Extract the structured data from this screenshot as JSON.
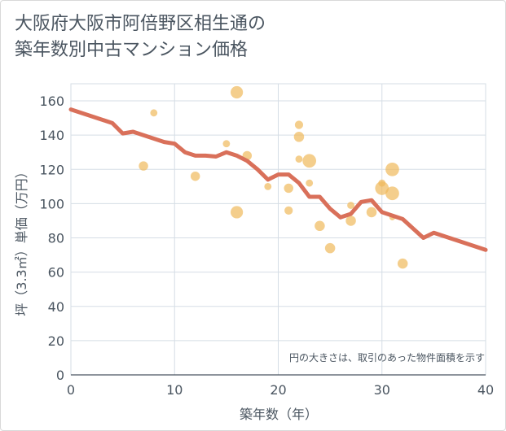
{
  "title_lines": [
    "大阪府大阪市阿倍野区相生通の",
    "築年数別中古マンション価格"
  ],
  "chart_data": {
    "type": "scatter",
    "xlabel": "築年数（年）",
    "ylabel": "坪（3.3㎡）単価（万円）",
    "xlim": [
      0,
      40
    ],
    "ylim": [
      0,
      170
    ],
    "x_ticks": [
      0,
      10,
      20,
      30,
      40
    ],
    "y_ticks": [
      0,
      20,
      40,
      60,
      80,
      100,
      120,
      140,
      160
    ],
    "grid": true,
    "annotation": "円の大きさは、取引のあった物件面積を示す",
    "colors": {
      "bubble": "#f0b95b",
      "line": "#d9705a",
      "axis_text": "#4a5560",
      "grid": "#d5dde5"
    },
    "scatter": [
      {
        "x": 7,
        "y": 122,
        "size": 2
      },
      {
        "x": 8,
        "y": 153,
        "size": 1
      },
      {
        "x": 12,
        "y": 116,
        "size": 2
      },
      {
        "x": 15,
        "y": 135,
        "size": 1
      },
      {
        "x": 16,
        "y": 165,
        "size": 4
      },
      {
        "x": 16,
        "y": 95,
        "size": 4
      },
      {
        "x": 17,
        "y": 128,
        "size": 2
      },
      {
        "x": 19,
        "y": 110,
        "size": 1
      },
      {
        "x": 21,
        "y": 109,
        "size": 2
      },
      {
        "x": 21,
        "y": 96,
        "size": 1.5
      },
      {
        "x": 22,
        "y": 146,
        "size": 1.5
      },
      {
        "x": 22,
        "y": 139,
        "size": 2.5
      },
      {
        "x": 22,
        "y": 126,
        "size": 1
      },
      {
        "x": 23,
        "y": 125,
        "size": 5
      },
      {
        "x": 23,
        "y": 112,
        "size": 1
      },
      {
        "x": 24,
        "y": 87,
        "size": 2.5
      },
      {
        "x": 25,
        "y": 74,
        "size": 2.5
      },
      {
        "x": 27,
        "y": 99,
        "size": 1
      },
      {
        "x": 27,
        "y": 90,
        "size": 2.5
      },
      {
        "x": 29,
        "y": 95,
        "size": 2.5
      },
      {
        "x": 30,
        "y": 112,
        "size": 1
      },
      {
        "x": 30,
        "y": 109,
        "size": 5
      },
      {
        "x": 31,
        "y": 120,
        "size": 5
      },
      {
        "x": 31,
        "y": 106,
        "size": 5
      },
      {
        "x": 31,
        "y": 92,
        "size": 0.6
      },
      {
        "x": 32,
        "y": 65,
        "size": 2.5
      }
    ],
    "trend": [
      {
        "x": 0,
        "y": 155
      },
      {
        "x": 2,
        "y": 151
      },
      {
        "x": 4,
        "y": 147
      },
      {
        "x": 5,
        "y": 141
      },
      {
        "x": 6,
        "y": 142
      },
      {
        "x": 7,
        "y": 140
      },
      {
        "x": 9,
        "y": 136
      },
      {
        "x": 10,
        "y": 135
      },
      {
        "x": 11,
        "y": 130
      },
      {
        "x": 12,
        "y": 128
      },
      {
        "x": 13,
        "y": 128
      },
      {
        "x": 14,
        "y": 127.5
      },
      {
        "x": 15,
        "y": 130
      },
      {
        "x": 16,
        "y": 128
      },
      {
        "x": 17,
        "y": 125
      },
      {
        "x": 18,
        "y": 120
      },
      {
        "x": 19,
        "y": 114
      },
      {
        "x": 20,
        "y": 117
      },
      {
        "x": 21,
        "y": 117
      },
      {
        "x": 22,
        "y": 112
      },
      {
        "x": 23,
        "y": 104
      },
      {
        "x": 24,
        "y": 104
      },
      {
        "x": 25,
        "y": 97
      },
      {
        "x": 26,
        "y": 92
      },
      {
        "x": 27,
        "y": 94
      },
      {
        "x": 28,
        "y": 101
      },
      {
        "x": 29,
        "y": 102
      },
      {
        "x": 30,
        "y": 95
      },
      {
        "x": 32,
        "y": 91
      },
      {
        "x": 34,
        "y": 80
      },
      {
        "x": 35,
        "y": 83
      },
      {
        "x": 40,
        "y": 73
      }
    ]
  }
}
